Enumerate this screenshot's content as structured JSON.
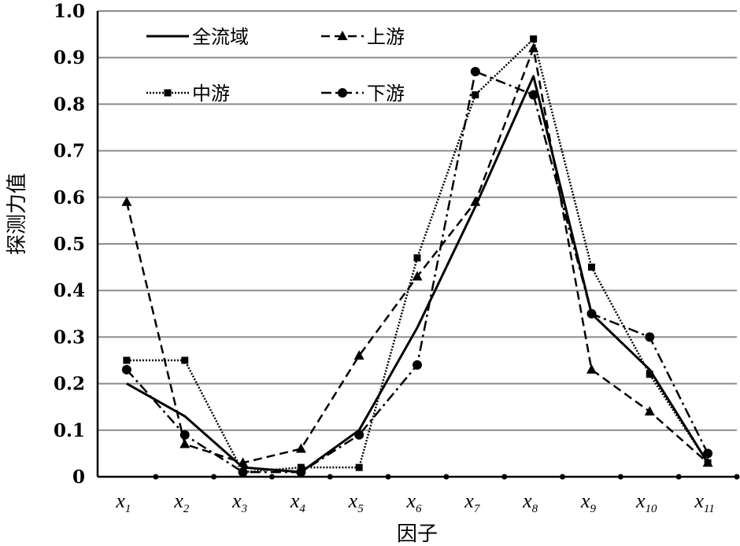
{
  "chart_data": {
    "type": "line",
    "xlabel": "因子",
    "ylabel": "探测力值",
    "ylim": [
      0,
      1.0
    ],
    "yticks": [
      "0",
      "0.1",
      "0.2",
      "0.3",
      "0.4",
      "0.5",
      "0.6",
      "0.7",
      "0.8",
      "0.9",
      "1.0"
    ],
    "categories": [
      {
        "sym": "x",
        "sub": "1"
      },
      {
        "sym": "x",
        "sub": "2"
      },
      {
        "sym": "x",
        "sub": "3"
      },
      {
        "sym": "x",
        "sub": "4"
      },
      {
        "sym": "x",
        "sub": "5"
      },
      {
        "sym": "x",
        "sub": "6"
      },
      {
        "sym": "x",
        "sub": "7"
      },
      {
        "sym": "x",
        "sub": "8"
      },
      {
        "sym": "x",
        "sub": "9"
      },
      {
        "sym": "x",
        "sub": "10"
      },
      {
        "sym": "x",
        "sub": "11"
      }
    ],
    "grid": true,
    "legend_position": "top",
    "series": [
      {
        "name": "全流域",
        "style": "solid",
        "marker": "none",
        "values": [
          0.2,
          0.13,
          0.02,
          0.01,
          0.1,
          0.32,
          0.58,
          0.86,
          0.35,
          0.23,
          0.03
        ]
      },
      {
        "name": "上游",
        "style": "dashed",
        "marker": "triangle",
        "values": [
          0.59,
          0.07,
          0.03,
          0.06,
          0.26,
          0.43,
          0.59,
          0.92,
          0.23,
          0.14,
          0.03
        ]
      },
      {
        "name": "中游",
        "style": "dotted",
        "marker": "square",
        "values": [
          0.25,
          0.25,
          0.01,
          0.02,
          0.02,
          0.47,
          0.82,
          0.94,
          0.45,
          0.22,
          0.03
        ]
      },
      {
        "name": "下游",
        "style": "dashdot",
        "marker": "circle",
        "values": [
          0.23,
          0.09,
          0.01,
          0.01,
          0.09,
          0.24,
          0.87,
          0.82,
          0.35,
          0.3,
          0.05
        ]
      }
    ]
  }
}
